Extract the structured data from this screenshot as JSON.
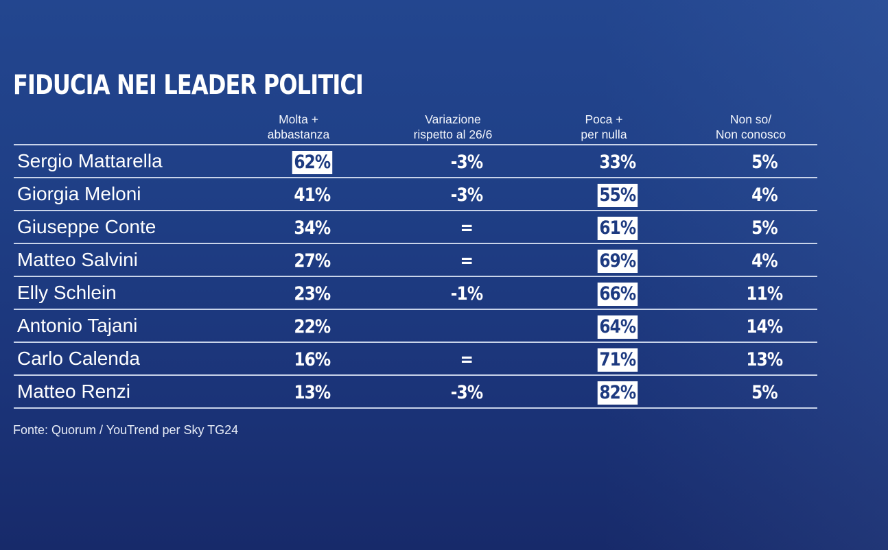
{
  "chart_data": {
    "type": "table",
    "title": "FIDUCIA NEI LEADER POLITICI",
    "columns": [
      {
        "key": "molta",
        "label_lines": [
          "Molta +",
          "abbastanza"
        ]
      },
      {
        "key": "variazione",
        "label_lines": [
          "Variazione",
          "rispetto al 26/6"
        ]
      },
      {
        "key": "poca",
        "label_lines": [
          "Poca +",
          "per nulla"
        ]
      },
      {
        "key": "nonso",
        "label_lines": [
          "Non so/",
          "Non conosco"
        ]
      }
    ],
    "rows": [
      {
        "name": "Sergio Mattarella",
        "molta": "62%",
        "variazione": "-3%",
        "poca": "33%",
        "nonso": "5%",
        "highlight": "molta"
      },
      {
        "name": "Giorgia Meloni",
        "molta": "41%",
        "variazione": "-3%",
        "poca": "55%",
        "nonso": "4%",
        "highlight": "poca"
      },
      {
        "name": "Giuseppe Conte",
        "molta": "34%",
        "variazione": "=",
        "poca": "61%",
        "nonso": "5%",
        "highlight": "poca"
      },
      {
        "name": "Matteo Salvini",
        "molta": "27%",
        "variazione": "=",
        "poca": "69%",
        "nonso": "4%",
        "highlight": "poca"
      },
      {
        "name": "Elly Schlein",
        "molta": "23%",
        "variazione": "-1%",
        "poca": "66%",
        "nonso": "11%",
        "highlight": "poca"
      },
      {
        "name": "Antonio Tajani",
        "molta": "22%",
        "variazione": "",
        "poca": "64%",
        "nonso": "14%",
        "highlight": "poca"
      },
      {
        "name": "Carlo Calenda",
        "molta": "16%",
        "variazione": "=",
        "poca": "71%",
        "nonso": "13%",
        "highlight": "poca"
      },
      {
        "name": "Matteo Renzi",
        "molta": "13%",
        "variazione": "-3%",
        "poca": "82%",
        "nonso": "5%",
        "highlight": "poca"
      }
    ],
    "source": "Fonte: Quorum / YouTrend per Sky TG24"
  },
  "colors": {
    "highlight_bg": "#ffffff",
    "highlight_text": "#1d3a80",
    "rule": "#c9d4ea"
  }
}
